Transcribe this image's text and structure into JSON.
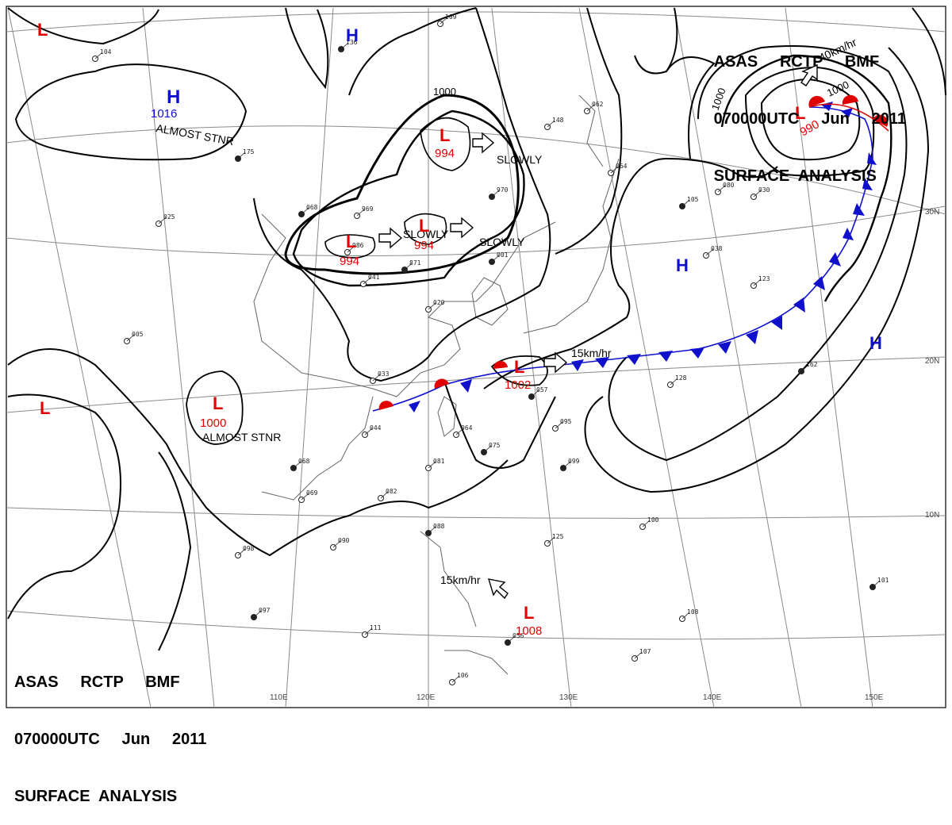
{
  "header": {
    "line1": "ASAS     RCTP     BMF",
    "line2": "070000UTC     Jun     2011",
    "line3": "SURFACE  ANALYSIS"
  },
  "colors": {
    "low": "#e00000",
    "high": "#1010cc",
    "isobar": "#000000",
    "grid": "#8a8a8a",
    "coast": "#666666"
  },
  "grid_labels": {
    "lon": [
      "110E",
      "120E",
      "130E",
      "140E",
      "150E"
    ],
    "lat": [
      "30N",
      "20N",
      "10N"
    ]
  },
  "isobar_labels": [
    "1000",
    "1000",
    "1000"
  ],
  "systems": [
    {
      "type": "L",
      "value": "",
      "note": ""
    },
    {
      "type": "H",
      "value": "",
      "note": ""
    },
    {
      "type": "H",
      "value": "1016",
      "note": "ALMOST STNR"
    },
    {
      "type": "L",
      "value": "994",
      "note": "SLOWLY"
    },
    {
      "type": "L",
      "value": "994",
      "note": "SLOWLY"
    },
    {
      "type": "L",
      "value": "994",
      "note": "SLOWLY"
    },
    {
      "type": "L",
      "value": "990",
      "note": "40km/hr"
    },
    {
      "type": "H",
      "value": "",
      "note": ""
    },
    {
      "type": "H",
      "value": "",
      "note": ""
    },
    {
      "type": "L",
      "value": "1002",
      "note": "15km/hr"
    },
    {
      "type": "L",
      "value": "1000",
      "note": "ALMOST STNR"
    },
    {
      "type": "L",
      "value": "",
      "note": ""
    },
    {
      "type": "L",
      "value": "1008",
      "note": "15km/hr"
    }
  ],
  "stations": [
    "136",
    "109",
    "104",
    "175",
    "025",
    "062",
    "068",
    "148",
    "064",
    "970",
    "969",
    "986",
    "871",
    "041",
    "020",
    "001",
    "038",
    "080",
    "105",
    "030",
    "123",
    "162",
    "128",
    "033",
    "057",
    "095",
    "064",
    "075",
    "081",
    "082",
    "099",
    "044",
    "069",
    "068",
    "098",
    "090",
    "088",
    "125",
    "100",
    "097",
    "111",
    "106",
    "056",
    "107",
    "108",
    "101",
    "005"
  ]
}
